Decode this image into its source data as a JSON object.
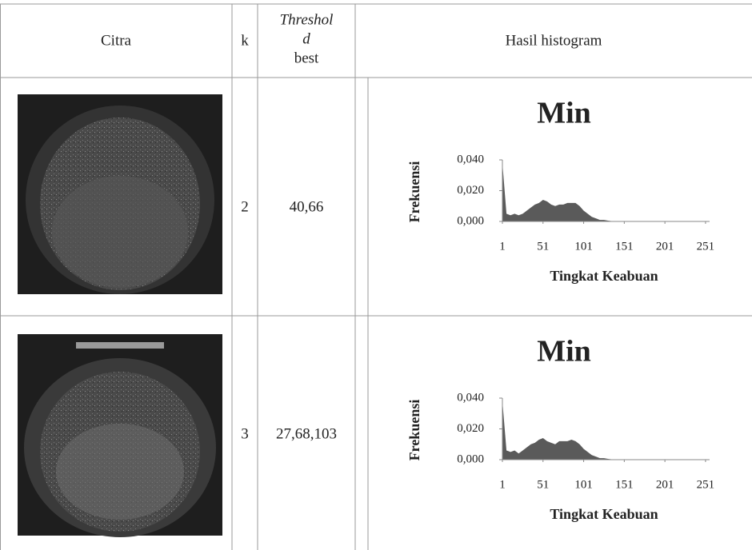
{
  "table": {
    "header": {
      "citra": "Citra",
      "k": "k",
      "threshold": [
        "Threshol",
        "d"
      ],
      "best": "best",
      "histogram": "Hasil histogram"
    },
    "rows": [
      {
        "k": "2",
        "threshold": "40,66"
      },
      {
        "k": "3",
        "threshold": "27,68,103"
      }
    ]
  },
  "chart_data": [
    {
      "type": "area",
      "title": "Min",
      "y_label": "Frekuensi",
      "x_label": "Tingkat Keabuan",
      "color": "#5a5a5a",
      "x": [
        1,
        6,
        11,
        16,
        21,
        26,
        31,
        36,
        41,
        46,
        51,
        56,
        61,
        66,
        71,
        76,
        81,
        86,
        91,
        96,
        101,
        106,
        111,
        116,
        121,
        126,
        131,
        136,
        141,
        146,
        151,
        156,
        161,
        166,
        171,
        176,
        181,
        186,
        191,
        196,
        201,
        206,
        211,
        216,
        221,
        226,
        231,
        236,
        241,
        246,
        251,
        256
      ],
      "values": [
        0.038,
        0.005,
        0.004,
        0.005,
        0.004,
        0.005,
        0.007,
        0.009,
        0.011,
        0.012,
        0.014,
        0.013,
        0.011,
        0.01,
        0.011,
        0.011,
        0.012,
        0.012,
        0.012,
        0.01,
        0.007,
        0.005,
        0.003,
        0.002,
        0.001,
        0.001,
        0.0005,
        0.0002,
        0,
        0,
        0,
        0,
        0,
        0,
        0,
        0,
        0,
        0,
        0,
        0,
        0,
        0,
        0,
        0,
        0,
        0,
        0,
        0,
        0,
        0,
        0,
        0
      ],
      "xlim": [
        1,
        256
      ],
      "ylim": [
        0,
        0.04
      ],
      "xticks": [
        1,
        51,
        101,
        151,
        201,
        251
      ],
      "yticks": [
        {
          "value": 0.04,
          "label": "0,040"
        },
        {
          "value": 0.02,
          "label": "0,020"
        },
        {
          "value": 0,
          "label": "0,000"
        }
      ]
    },
    {
      "type": "area",
      "title": "Min",
      "y_label": "Frekuensi",
      "x_label": "Tingkat Keabuan",
      "color": "#5a5a5a",
      "x": [
        1,
        6,
        11,
        16,
        21,
        26,
        31,
        36,
        41,
        46,
        51,
        56,
        61,
        66,
        71,
        76,
        81,
        86,
        91,
        96,
        101,
        106,
        111,
        116,
        121,
        126,
        131,
        136,
        141,
        146,
        151,
        156,
        161,
        166,
        171,
        176,
        181,
        186,
        191,
        196,
        201,
        206,
        211,
        216,
        221,
        226,
        231,
        236,
        241,
        246,
        251,
        256
      ],
      "values": [
        0.038,
        0.006,
        0.005,
        0.006,
        0.004,
        0.006,
        0.008,
        0.01,
        0.011,
        0.013,
        0.014,
        0.012,
        0.011,
        0.01,
        0.012,
        0.012,
        0.012,
        0.013,
        0.012,
        0.01,
        0.007,
        0.005,
        0.003,
        0.002,
        0.001,
        0.001,
        0.0005,
        0.0002,
        0,
        0,
        0,
        0,
        0,
        0,
        0,
        0,
        0,
        0,
        0,
        0,
        0,
        0,
        0,
        0,
        0,
        0,
        0,
        0,
        0,
        0,
        0,
        0
      ],
      "xlim": [
        1,
        256
      ],
      "ylim": [
        0,
        0.04
      ],
      "xticks": [
        1,
        51,
        101,
        151,
        201,
        251
      ],
      "yticks": [
        {
          "value": 0.04,
          "label": "0,040"
        },
        {
          "value": 0.02,
          "label": "0,020"
        },
        {
          "value": 0,
          "label": "0,000"
        }
      ]
    }
  ]
}
